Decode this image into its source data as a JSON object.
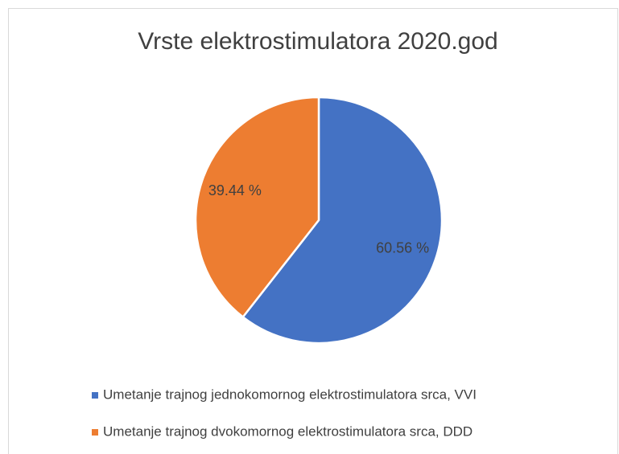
{
  "chart_data": {
    "type": "pie",
    "title": "Vrste elektrostimulatora 2020.god",
    "categories": [
      "Umetanje trajnog jednokomornog elektrostimulatora srca, VVI",
      "Umetanje trajnog dvokomornog elektrostimulatora srca, DDD"
    ],
    "values": [
      60.56,
      39.44
    ],
    "value_labels": [
      "60.56 %",
      "39.44 %"
    ],
    "colors": [
      "#4472c4",
      "#ed7d31"
    ],
    "legend": "bottom"
  }
}
